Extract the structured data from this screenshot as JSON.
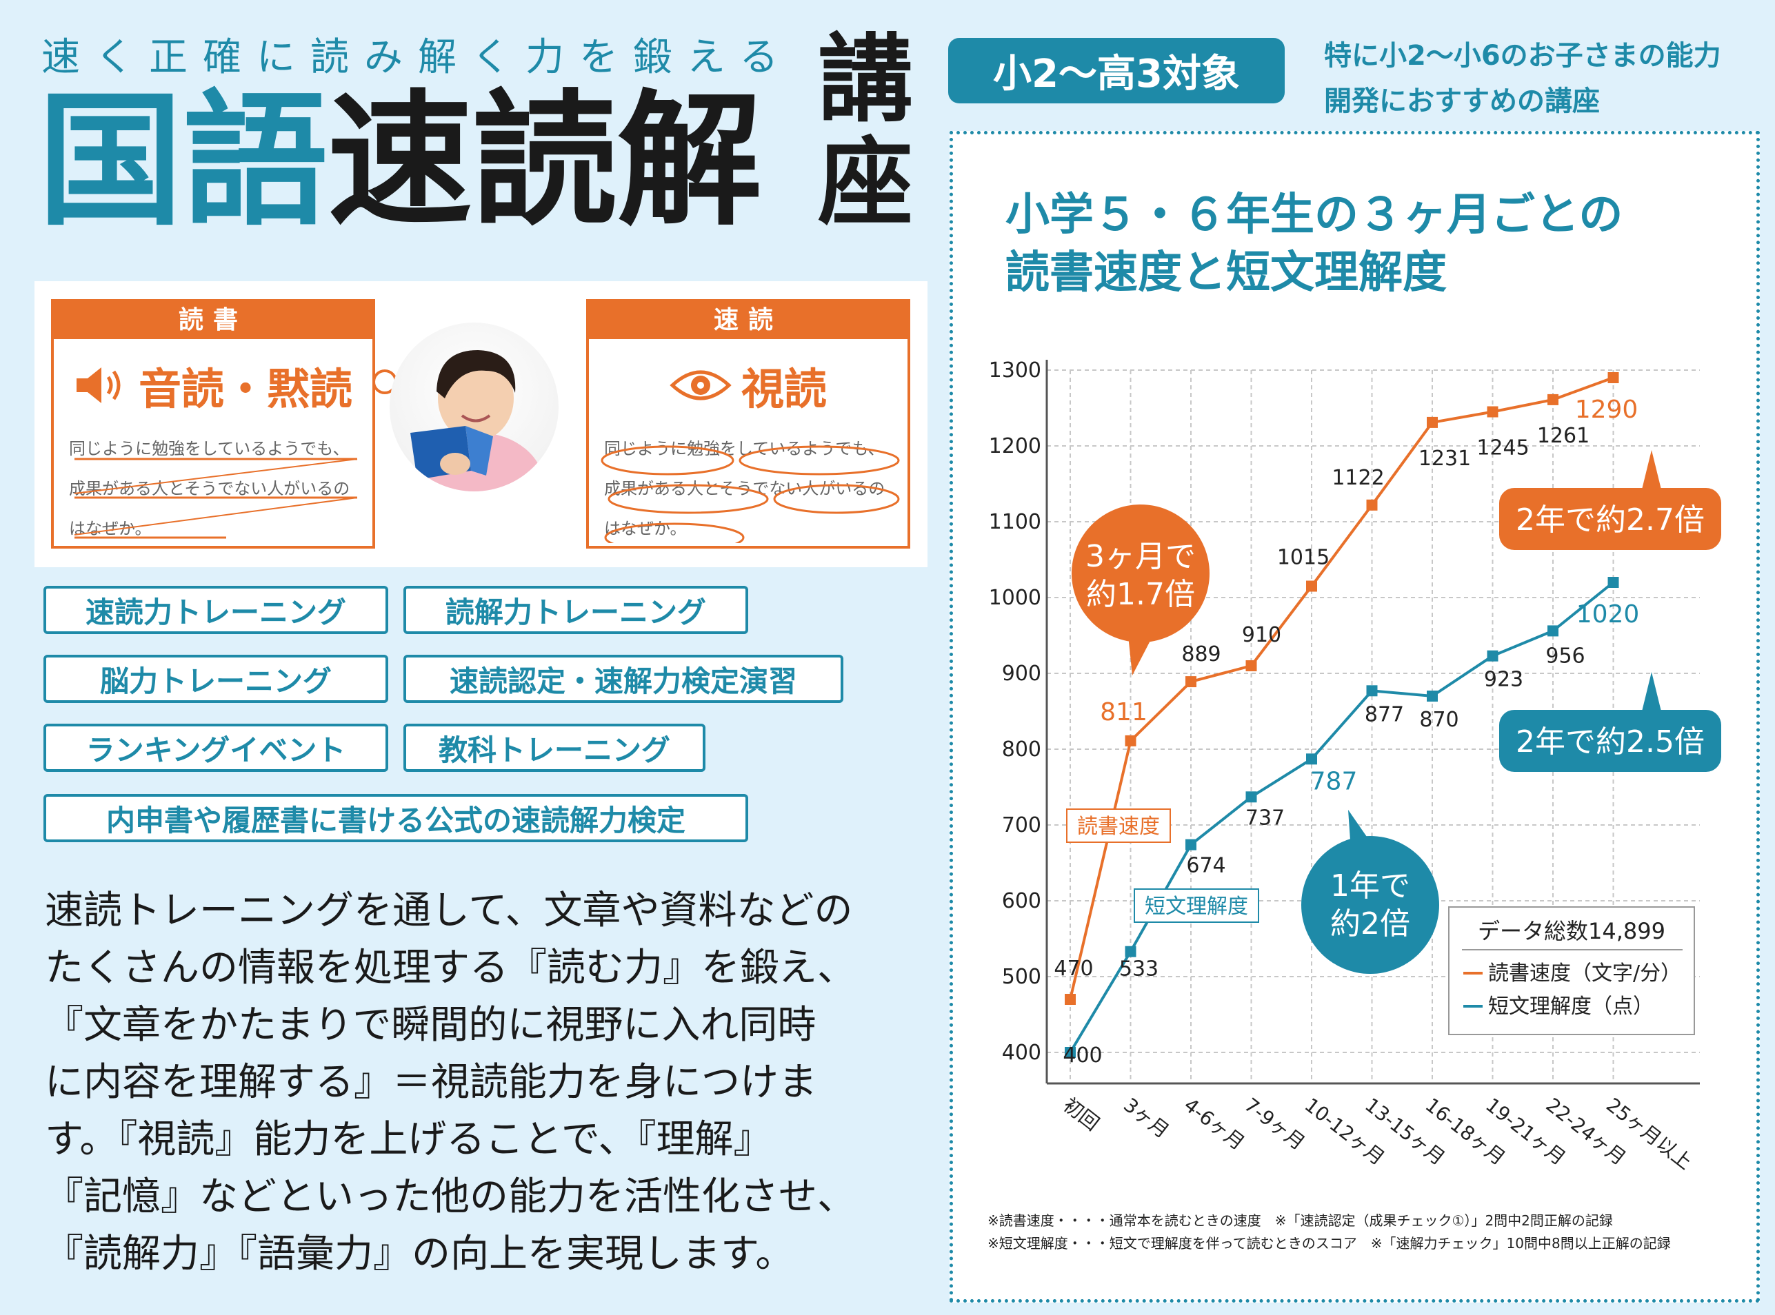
{
  "header": {
    "tagline": "速く正確に読み解く力を鍛える",
    "title_teal": "国語",
    "title_black": "速読解",
    "title_vertical_1": "講",
    "title_vertical_2": "座"
  },
  "illustration": {
    "left": {
      "header": "読書",
      "big": "音読・黙読",
      "sample": "同じように勉強をしているようでも、成果がある人とそうでない人がいるのはなぜか。"
    },
    "right": {
      "header": "速読",
      "big": "視読",
      "sample": "同じように勉強をしているようでも、成果がある人とそうでない人がいるのはなぜか。"
    }
  },
  "tags": [
    "速読力トレーニング",
    "読解力トレーニング",
    "脳力トレーニング",
    "速読認定・速解力検定演習",
    "ランキングイベント",
    "教科トレーニング",
    "内申書や履歴書に書ける公式の速読解力検定"
  ],
  "body": {
    "lines": [
      "速読トレーニングを通して、文章や資料などの",
      "たくさんの情報を処理する『読む力』を鍛え、",
      "『文章をかたまりで瞬間的に視野に入れ同時",
      "に内容を理解する』＝視読能力を身につけま",
      "す。『視読』能力を上げることで、『理解』",
      "『記憶』などといった他の能力を活性化させ、",
      "『読解力』『語彙力』の向上を実現します。"
    ]
  },
  "target": {
    "badge": "小2〜高3対象",
    "note_line1": "特に小2〜小6のお子さまの能力",
    "note_line2": "開発におすすめの講座"
  },
  "chart_data": {
    "type": "line",
    "title_line1": "小学５・６年生の３ヶ月ごとの",
    "title_line2": "読書速度と短文理解度",
    "categories": [
      "初回",
      "3ヶ月",
      "4-6ヶ月",
      "7-9ヶ月",
      "10-12ヶ月",
      "13-15ヶ月",
      "16-18ヶ月",
      "19-21ヶ月",
      "22-24ヶ月",
      "25ヶ月以上"
    ],
    "yticks": [
      "400",
      "500",
      "600",
      "700",
      "800",
      "900",
      "1000",
      "1100",
      "1200",
      "1300"
    ],
    "ylim": [
      400,
      1300
    ],
    "grid": true,
    "series": [
      {
        "name": "読書速度",
        "legend": "読書速度（文字/分）",
        "color": "#e8702a",
        "values": [
          470,
          811,
          889,
          910,
          1015,
          1122,
          1231,
          1245,
          1261,
          1290
        ],
        "labels": [
          "470",
          "811",
          "889",
          "910",
          "1015",
          "1122",
          "1231",
          "1245",
          "1261",
          "1290"
        ]
      },
      {
        "name": "短文理解度",
        "legend": "短文理解度（点）",
        "color": "#1e8aa8",
        "values": [
          400,
          533,
          674,
          737,
          787,
          877,
          870,
          923,
          956,
          1020
        ],
        "labels": [
          "400",
          "533",
          "674",
          "737",
          "787",
          "877",
          "870",
          "923",
          "956",
          "1020"
        ]
      }
    ],
    "legend_title": "データ総数14,899",
    "callouts": {
      "c3m_line1": "3ヶ月で",
      "c3m_line2": "約1.7倍",
      "c1y_line1": "1年で",
      "c1y_line2": "約2倍",
      "speed_2y": "2年で約2.7倍",
      "comp_2y": "2年で約2.5倍"
    },
    "footnotes": [
      "※読書速度・・・・通常本を読むときの速度　※「速読認定（成果チェック①）」2問中2問正解の記録",
      "※短文理解度・・・短文で理解度を伴って読むときのスコア　※「速解力チェック」10問中8問以上正解の記録"
    ]
  }
}
